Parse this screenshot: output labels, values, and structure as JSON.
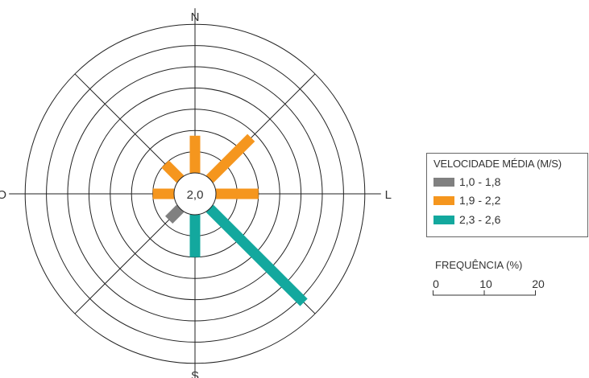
{
  "chart_data": {
    "type": "wind-rose",
    "center_label": "2,0",
    "directions": [
      "N",
      "L",
      "S",
      "O"
    ],
    "rings_percent": [
      4,
      8,
      12,
      16,
      20,
      24,
      28
    ],
    "sectors": [
      {
        "direction": "N",
        "frequency": 7,
        "speed_class": 1
      },
      {
        "direction": "NE",
        "frequency": 11,
        "speed_class": 1
      },
      {
        "direction": "L",
        "frequency": 8,
        "speed_class": 1
      },
      {
        "direction": "SE",
        "frequency": 25,
        "speed_class": 2
      },
      {
        "direction": "S",
        "frequency": 8,
        "speed_class": 2
      },
      {
        "direction": "SO",
        "frequency": 3,
        "speed_class": 0
      },
      {
        "direction": "O",
        "frequency": 4,
        "speed_class": 1
      },
      {
        "direction": "NO",
        "frequency": 4,
        "speed_class": 1
      }
    ],
    "legend": {
      "title": "VELOCIDADE MÉDIA (M/S)",
      "classes": [
        {
          "label": "1,0 - 1,8",
          "color": "#808080"
        },
        {
          "label": "1,9 - 2,2",
          "color": "#F5961E"
        },
        {
          "label": "2,3 - 2,6",
          "color": "#13A89E"
        }
      ]
    },
    "scale": {
      "title": "FREQUÊNCIA (%)",
      "ticks": [
        "0",
        "10",
        "20"
      ]
    }
  }
}
